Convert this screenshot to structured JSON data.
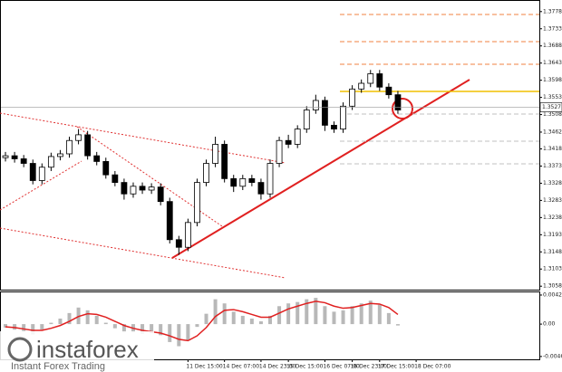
{
  "chart_data": [
    {
      "type": "candlestick",
      "open": [
        1.3395,
        1.34,
        1.3392,
        1.338,
        1.3335,
        1.337,
        1.3398,
        1.3405,
        1.344,
        1.3455,
        1.34,
        1.3385,
        1.335,
        1.333,
        1.33,
        1.332,
        1.331,
        1.3318,
        1.328,
        1.318,
        1.316,
        1.3225,
        1.333,
        1.338,
        1.343,
        1.334,
        1.332,
        1.334,
        1.333,
        1.33,
        1.338,
        1.344,
        1.343,
        1.347,
        1.352,
        1.3545,
        1.348,
        1.347,
        1.353,
        1.3575,
        1.359,
        1.3615,
        1.358,
        1.356
      ],
      "high": [
        1.341,
        1.341,
        1.3402,
        1.339,
        1.338,
        1.3408,
        1.3415,
        1.345,
        1.347,
        1.3465,
        1.341,
        1.3395,
        1.336,
        1.334,
        1.333,
        1.333,
        1.3328,
        1.3328,
        1.329,
        1.319,
        1.3235,
        1.334,
        1.339,
        1.345,
        1.344,
        1.335,
        1.335,
        1.335,
        1.334,
        1.339,
        1.345,
        1.3455,
        1.348,
        1.353,
        1.356,
        1.3555,
        1.349,
        1.354,
        1.3585,
        1.36,
        1.3625,
        1.3625,
        1.359,
        1.357
      ],
      "low": [
        1.3385,
        1.3382,
        1.337,
        1.3325,
        1.3325,
        1.336,
        1.3388,
        1.3395,
        1.343,
        1.339,
        1.3375,
        1.334,
        1.332,
        1.3285,
        1.329,
        1.33,
        1.33,
        1.327,
        1.317,
        1.314,
        1.315,
        1.3215,
        1.332,
        1.337,
        1.333,
        1.3305,
        1.331,
        1.332,
        1.3285,
        1.329,
        1.337,
        1.342,
        1.342,
        1.346,
        1.351,
        1.3465,
        1.346,
        1.346,
        1.352,
        1.3565,
        1.358,
        1.357,
        1.355,
        1.351
      ],
      "close": [
        1.34,
        1.3392,
        1.338,
        1.3335,
        1.337,
        1.3398,
        1.3405,
        1.344,
        1.3455,
        1.34,
        1.3385,
        1.335,
        1.333,
        1.33,
        1.332,
        1.331,
        1.3318,
        1.328,
        1.318,
        1.316,
        1.3225,
        1.333,
        1.338,
        1.343,
        1.334,
        1.332,
        1.334,
        1.333,
        1.33,
        1.338,
        1.344,
        1.343,
        1.347,
        1.352,
        1.3545,
        1.348,
        1.347,
        1.353,
        1.3575,
        1.359,
        1.3615,
        1.358,
        1.356,
        1.352
      ],
      "color": "#000000",
      "xlim": [
        -0.5,
        58.5
      ],
      "ylim": [
        1.3049,
        1.3806
      ],
      "yticks": [
        1.3058,
        1.3103,
        1.3148,
        1.3193,
        1.3238,
        1.3283,
        1.3328,
        1.3373,
        1.3418,
        1.3462,
        1.3508,
        1.3553,
        1.3598,
        1.3643,
        1.3688,
        1.3733,
        1.3778
      ],
      "last_price": 1.3527
    },
    {
      "type": "histogram_line",
      "values": [
        -0.0005,
        -0.0008,
        -0.001,
        -0.0015,
        -0.0008,
        0.0002,
        0.0008,
        0.0016,
        0.0024,
        0.002,
        0.0012,
        0.0002,
        -0.0006,
        -0.0012,
        -0.0012,
        -0.0014,
        -0.0013,
        -0.0016,
        -0.0026,
        -0.0032,
        -0.0024,
        -0.0004,
        0.0015,
        0.0036,
        0.003,
        0.0018,
        0.0012,
        0.0008,
        0.0004,
        0.0012,
        0.0026,
        0.003,
        0.0032,
        0.0036,
        0.0038,
        0.0026,
        0.0018,
        0.002,
        0.0026,
        0.003,
        0.0034,
        0.0028,
        0.0016,
        -0.0002
      ],
      "signal": [
        -0.0004,
        -0.0005,
        -0.0007,
        -0.0009,
        -0.0009,
        -0.0006,
        -0.0002,
        0.0004,
        0.0011,
        0.0015,
        0.0014,
        0.001,
        0.0004,
        -0.0002,
        -0.0006,
        -0.0009,
        -0.0011,
        -0.0013,
        -0.0017,
        -0.0022,
        -0.0024,
        -0.0017,
        -0.0005,
        0.0011,
        0.002,
        0.0021,
        0.0018,
        0.0014,
        0.001,
        0.001,
        0.0016,
        0.0022,
        0.0026,
        0.003,
        0.0033,
        0.0031,
        0.0026,
        0.0023,
        0.0024,
        0.0027,
        0.003,
        0.0029,
        0.0024,
        0.0014
      ],
      "color": "#b8b8b8",
      "signal_color": "#e02020",
      "xlim": [
        -0.5,
        58.5
      ],
      "ylim": [
        -0.0051,
        0.0046
      ],
      "yticks": [
        {
          "value": -0.00469,
          "label": "-0.00469"
        },
        {
          "value": 0,
          "label": "0.00"
        },
        {
          "value": 0.00421,
          "label": "0.00421"
        }
      ],
      "xticks": [
        {
          "value": 20,
          "label": "11 Dec 15:00"
        },
        {
          "value": 24,
          "label": "14 Dec 07:00"
        },
        {
          "value": 28,
          "label": "14 Dec 23:00"
        },
        {
          "value": 31,
          "label": "15 Dec 15:00"
        },
        {
          "value": 35,
          "label": "16 Dec 07:00"
        },
        {
          "value": 38,
          "label": "16 Dec 23:00"
        },
        {
          "value": 41,
          "label": "17 Dec 15:00"
        },
        {
          "value": 45,
          "label": "18 Dec 07:00"
        }
      ]
    }
  ],
  "logo": {
    "name": "instaforex",
    "tagline": "Instant Forex Trading"
  }
}
